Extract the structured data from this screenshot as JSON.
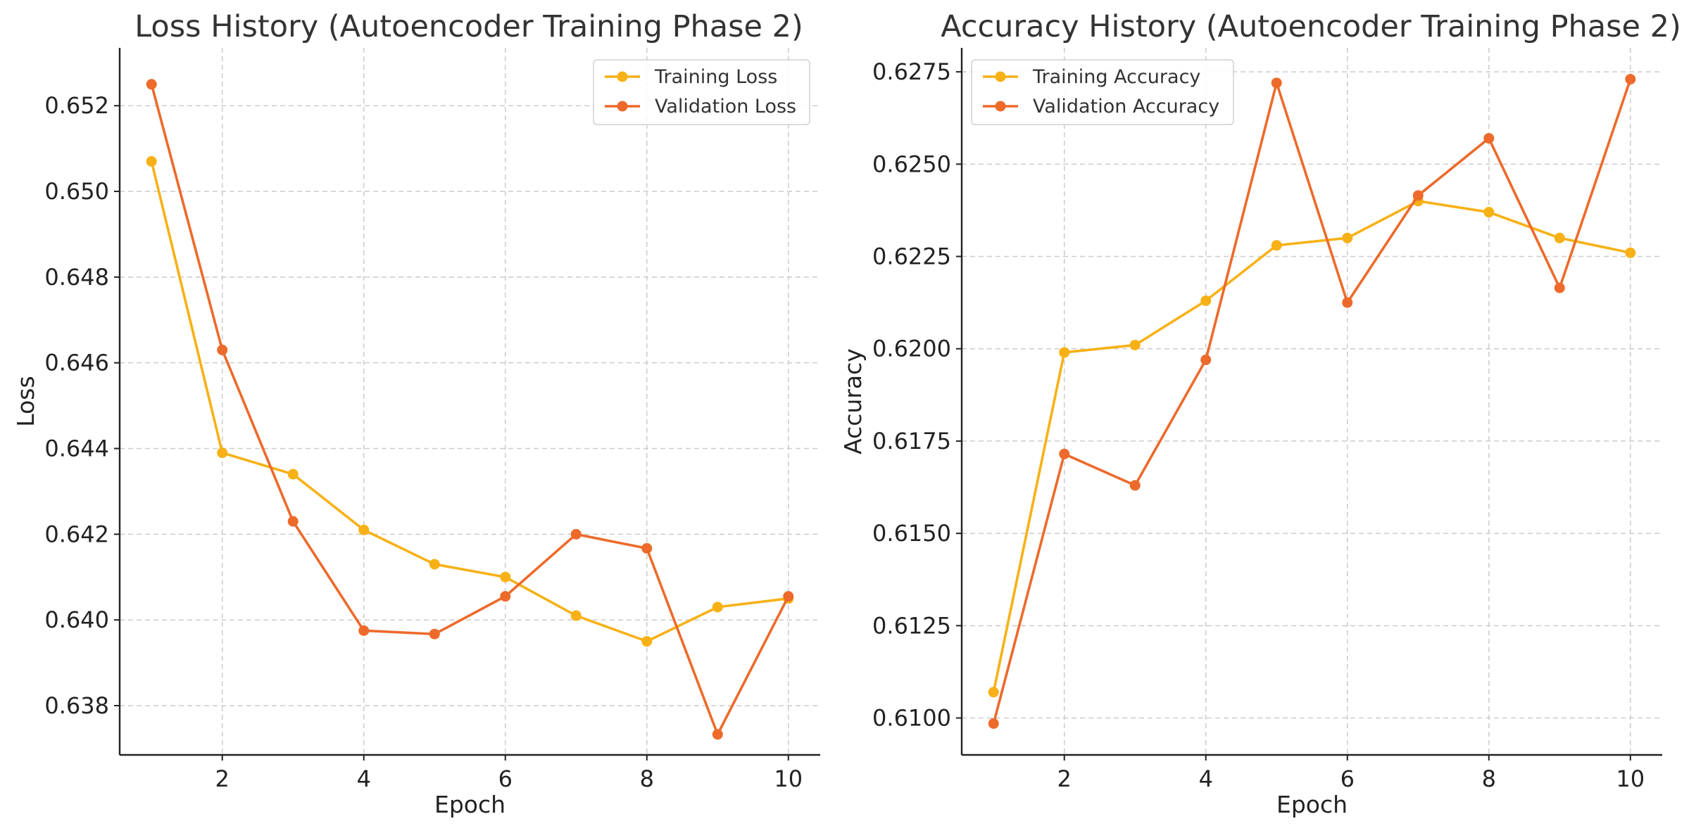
{
  "chart_data": [
    {
      "type": "line",
      "title": "Loss History (Autoencoder Training Phase 2)",
      "xlabel": "Epoch",
      "ylabel": "Loss",
      "x": [
        1,
        2,
        3,
        4,
        5,
        6,
        7,
        8,
        9,
        10
      ],
      "xticks": [
        2,
        4,
        6,
        8,
        10
      ],
      "xtick_labels": [
        "2",
        "4",
        "6",
        "8",
        "10"
      ],
      "xlim": [
        0.55,
        10.45
      ],
      "yticks": [
        0.638,
        0.64,
        0.642,
        0.644,
        0.646,
        0.648,
        0.65,
        0.652
      ],
      "ytick_labels": [
        "0.638",
        "0.640",
        "0.642",
        "0.644",
        "0.646",
        "0.648",
        "0.650",
        "0.652"
      ],
      "ylim": [
        0.63685,
        0.65335
      ],
      "grid": true,
      "legend_position": "top-right",
      "series": [
        {
          "name": "Training Loss",
          "color": "#f7b116",
          "values": [
            0.6507,
            0.6439,
            0.6434,
            0.6421,
            0.6413,
            0.641,
            0.6401,
            0.6395,
            0.6403,
            0.6405
          ]
        },
        {
          "name": "Validation Loss",
          "color": "#ed6a2b",
          "values": [
            0.6525,
            0.6463,
            0.6423,
            0.63975,
            0.63967,
            0.64055,
            0.642,
            0.64167,
            0.63733,
            0.64055
          ]
        }
      ]
    },
    {
      "type": "line",
      "title": "Accuracy History (Autoencoder Training Phase 2)",
      "xlabel": "Epoch",
      "ylabel": "Accuracy",
      "x": [
        1,
        2,
        3,
        4,
        5,
        6,
        7,
        8,
        9,
        10
      ],
      "xticks": [
        2,
        4,
        6,
        8,
        10
      ],
      "xtick_labels": [
        "2",
        "4",
        "6",
        "8",
        "10"
      ],
      "xlim": [
        0.55,
        10.45
      ],
      "yticks": [
        0.61,
        0.6125,
        0.615,
        0.6175,
        0.62,
        0.6225,
        0.625,
        0.6275
      ],
      "ytick_labels": [
        "0.6100",
        "0.6125",
        "0.6150",
        "0.6175",
        "0.6200",
        "0.6225",
        "0.6250",
        "0.6275"
      ],
      "ylim": [
        0.609,
        0.62815
      ],
      "grid": true,
      "legend_position": "top-left",
      "series": [
        {
          "name": "Training Accuracy",
          "color": "#f7b116",
          "values": [
            0.6107,
            0.6199,
            0.6201,
            0.6213,
            0.6228,
            0.623,
            0.624,
            0.6237,
            0.623,
            0.6226
          ]
        },
        {
          "name": "Validation Accuracy",
          "color": "#ed6a2b",
          "values": [
            0.60985,
            0.61715,
            0.6163,
            0.6197,
            0.6272,
            0.62125,
            0.62415,
            0.6257,
            0.62165,
            0.6273
          ]
        }
      ]
    }
  ]
}
